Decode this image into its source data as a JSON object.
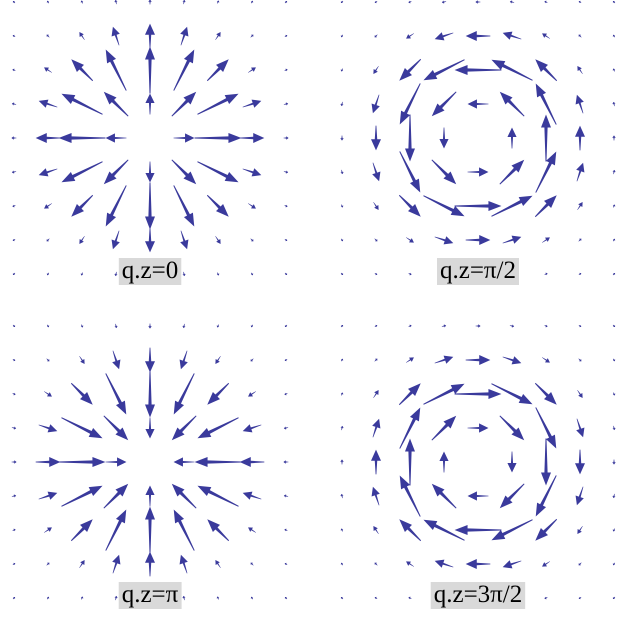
{
  "colors": {
    "arrow": "#3a3a9c",
    "label_background": "#d9d9d9",
    "background": "#ffffff"
  },
  "panels": [
    {
      "label": "q.z=0",
      "field": "radial-outward"
    },
    {
      "label": "q.z=π/2",
      "field": "circulation-counterclockwise"
    },
    {
      "label": "q.z=π",
      "field": "radial-inward"
    },
    {
      "label": "q.z=3π/2",
      "field": "circulation-clockwise"
    }
  ]
}
